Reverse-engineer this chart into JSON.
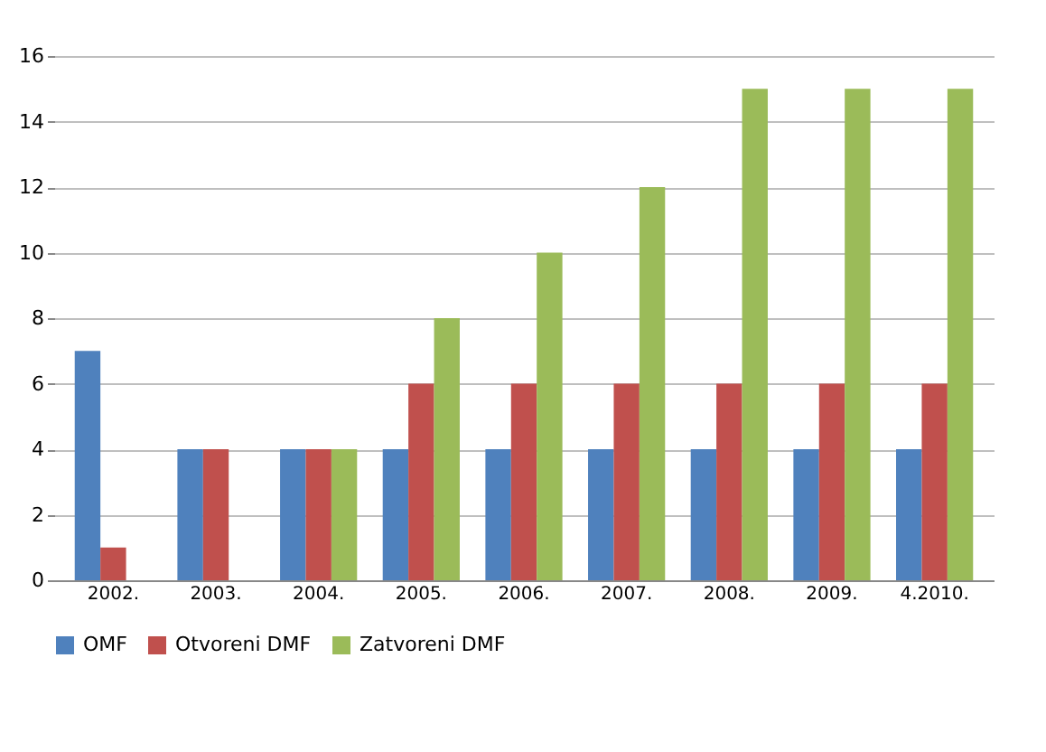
{
  "chart_data": {
    "type": "bar",
    "categories": [
      "2002.",
      "2003.",
      "2004.",
      "2005.",
      "2006.",
      "2007.",
      "2008.",
      "2009.",
      "4.2010."
    ],
    "series": [
      {
        "name": "OMF",
        "color": "#4f81bd",
        "values": [
          7,
          4,
          4,
          4,
          4,
          4,
          4,
          4,
          4
        ]
      },
      {
        "name": "Otvoreni DMF",
        "color": "#c0504d",
        "values": [
          1,
          4,
          4,
          6,
          6,
          6,
          6,
          6,
          6
        ]
      },
      {
        "name": "Zatvoreni DMF",
        "color": "#9bbb59",
        "values": [
          null,
          null,
          4,
          8,
          10,
          12,
          15,
          15,
          15
        ]
      }
    ],
    "ylim": [
      0,
      16
    ],
    "yticks": [
      0,
      2,
      4,
      6,
      8,
      10,
      12,
      14,
      16
    ],
    "grid": "y",
    "legend": "bottom"
  }
}
